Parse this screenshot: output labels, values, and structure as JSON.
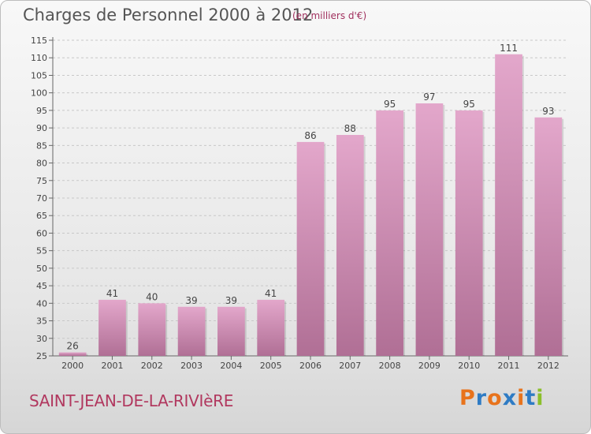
{
  "header": {
    "title": "Charges de Personnel 2000 à 2012",
    "subtitle": "(en milliers d'€)"
  },
  "commune": "SAINT-JEAN-DE-LA-RIVIèRE",
  "logo": {
    "text": "Proxiti",
    "letter_colors": [
      "#e8731c",
      "#2e7bc4",
      "#e8731c",
      "#2e7bc4",
      "#e8731c",
      "#2e7bc4",
      "#8bbf2a"
    ]
  },
  "colors": {
    "bar": "#c98aae",
    "bar_light": "#e3a7cb",
    "bar_dark": "#b06f95",
    "grid": "#c8c8c8"
  },
  "chart_data": {
    "type": "bar",
    "title": "Charges de Personnel 2000 à 2012",
    "subtitle": "(en milliers d'€)",
    "categories": [
      "2000",
      "2001",
      "2002",
      "2003",
      "2004",
      "2005",
      "2006",
      "2007",
      "2008",
      "2009",
      "2010",
      "2011",
      "2012"
    ],
    "values": [
      26,
      41,
      40,
      39,
      39,
      41,
      86,
      88,
      95,
      97,
      95,
      111,
      93
    ],
    "ylim": [
      25,
      115
    ],
    "yticks": [
      25,
      30,
      35,
      40,
      45,
      50,
      55,
      60,
      65,
      70,
      75,
      80,
      85,
      90,
      95,
      100,
      105,
      110,
      115
    ],
    "grid": true,
    "legend": "none"
  }
}
